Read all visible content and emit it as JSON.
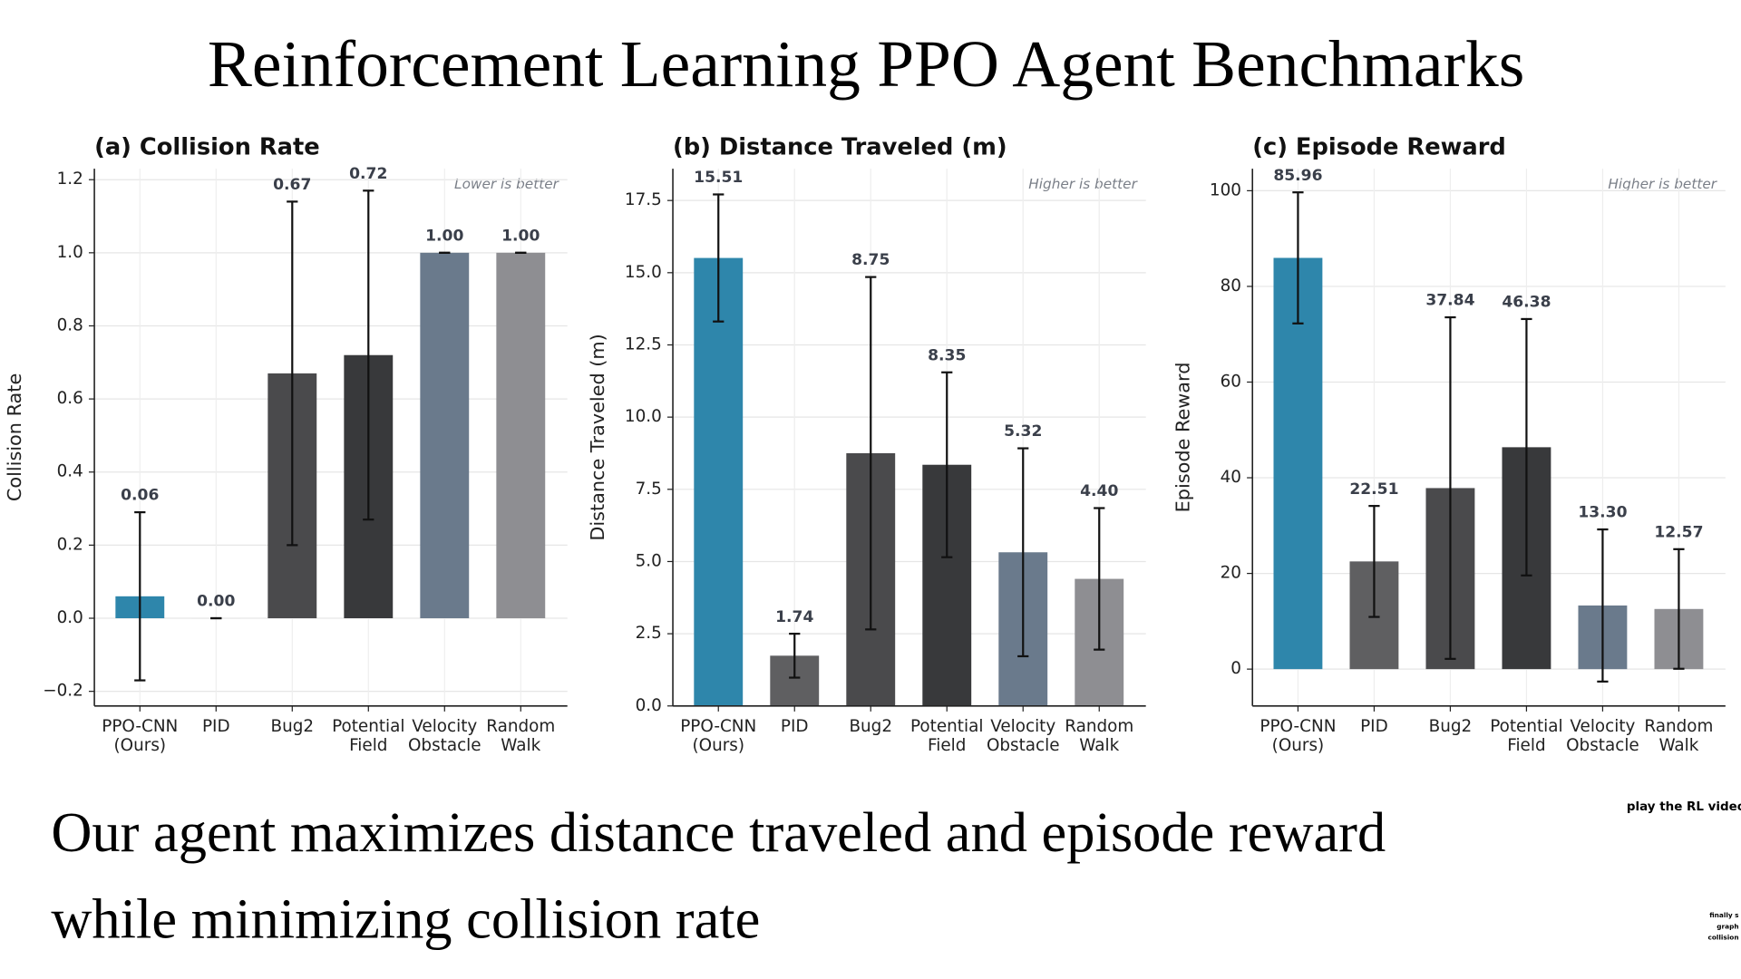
{
  "title": "Reinforcement Learning PPO Agent Benchmarks",
  "caption": [
    "Our agent maximizes distance traveled and episode reward",
    "while minimizing collision rate"
  ],
  "side_note": "play the RL video",
  "tiny_note": [
    "finally s",
    "graph",
    "collision"
  ],
  "chart_data": [
    {
      "type": "bar",
      "title": "(a) Collision Rate",
      "ylabel": "Collision Rate",
      "annotation": "Lower is better",
      "categories": [
        [
          "PPO-CNN",
          "(Ours)"
        ],
        [
          "PID"
        ],
        [
          "Bug2"
        ],
        [
          "Potential",
          "Field"
        ],
        [
          "Velocity",
          "Obstacle"
        ],
        [
          "Random",
          "Walk"
        ]
      ],
      "values": [
        0.06,
        0,
        0.67,
        0.72,
        1,
        1
      ],
      "value_labels": [
        "0.06",
        "0.00",
        "0.67",
        "0.72",
        "1.00",
        "1.00"
      ],
      "errors": [
        0.23,
        0,
        0.47,
        0.45,
        0,
        0
      ],
      "colors": [
        "#2e86ab",
        "#5f5f61",
        "#4a4a4c",
        "#38393b",
        "#6a7a8c",
        "#8e8e92"
      ],
      "ylim": [
        -0.24,
        1.23
      ],
      "yticks": [
        {
          "value": -0.2,
          "label": "−0.2"
        },
        {
          "value": 0,
          "label": "0.0"
        },
        0.2,
        0.4,
        0.6,
        0.8,
        {
          "value": 1,
          "label": "1.0"
        },
        1.2
      ],
      "grid": true
    },
    {
      "type": "bar",
      "title": "(b) Distance Traveled (m)",
      "ylabel": "Distance Traveled (m)",
      "annotation": "Higher is better",
      "categories": [
        [
          "PPO-CNN",
          "(Ours)"
        ],
        [
          "PID"
        ],
        [
          "Bug2"
        ],
        [
          "Potential",
          "Field"
        ],
        [
          "Velocity",
          "Obstacle"
        ],
        [
          "Random",
          "Walk"
        ]
      ],
      "values": [
        15.51,
        1.74,
        8.75,
        8.35,
        5.32,
        4.4
      ],
      "value_labels": [
        "15.51",
        "1.74",
        "8.75",
        "8.35",
        "5.32",
        "4.40"
      ],
      "errors": [
        2.2,
        0.76,
        6.1,
        3.2,
        3.6,
        2.45
      ],
      "colors": [
        "#2e86ab",
        "#5f5f61",
        "#4a4a4c",
        "#38393b",
        "#6a7a8c",
        "#8e8e92"
      ],
      "ylim": [
        0,
        18.6
      ],
      "yticks": [
        {
          "value": 0,
          "label": "0.0"
        },
        2.5,
        {
          "value": 5,
          "label": "5.0"
        },
        7.5,
        {
          "value": 10,
          "label": "10.0"
        },
        12.5,
        {
          "value": 15,
          "label": "15.0"
        },
        17.5
      ],
      "grid": true
    },
    {
      "type": "bar",
      "title": "(c) Episode Reward",
      "ylabel": "Episode Reward",
      "annotation": "Higher is better",
      "categories": [
        [
          "PPO-CNN",
          "(Ours)"
        ],
        [
          "PID"
        ],
        [
          "Bug2"
        ],
        [
          "Potential",
          "Field"
        ],
        [
          "Velocity",
          "Obstacle"
        ],
        [
          "Random",
          "Walk"
        ]
      ],
      "values": [
        85.96,
        22.51,
        37.84,
        46.38,
        13.3,
        12.57
      ],
      "value_labels": [
        "85.96",
        "22.51",
        "37.84",
        "46.38",
        "13.30",
        "12.57"
      ],
      "errors": [
        13.7,
        11.6,
        35.7,
        26.8,
        15.9,
        12.5
      ],
      "colors": [
        "#2e86ab",
        "#5f5f61",
        "#4a4a4c",
        "#38393b",
        "#6a7a8c",
        "#8e8e92"
      ],
      "ylim": [
        -7.7,
        104.6
      ],
      "yticks": [
        0,
        20,
        40,
        60,
        80,
        100
      ],
      "grid": true
    }
  ]
}
